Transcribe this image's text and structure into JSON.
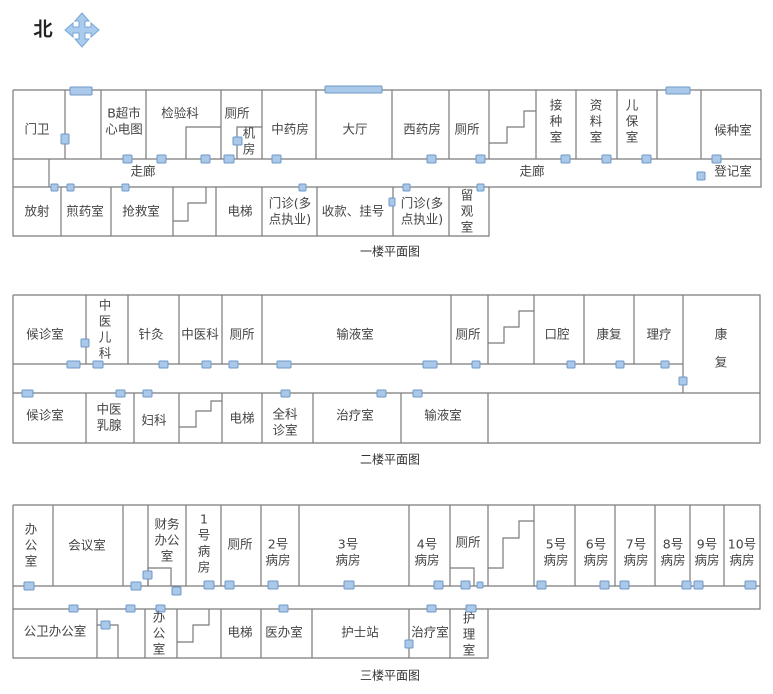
{
  "compass": {
    "label": "北",
    "icon": "four-way-arrow-icon",
    "icon_color": "#8fb8e0"
  },
  "colors": {
    "wall": "#7a7a7a",
    "door": "#a9c8ea",
    "text": "#444444"
  },
  "floors": [
    {
      "title": "一楼平面图",
      "rooms": [
        {
          "lines": [
            "门卫"
          ]
        },
        {
          "lines": [
            "B超市",
            "心电图"
          ]
        },
        {
          "lines": [
            "检验科"
          ]
        },
        {
          "lines": [
            "厕所"
          ]
        },
        {
          "lines": [
            "机",
            "房"
          ]
        },
        {
          "lines": [
            "中药房"
          ]
        },
        {
          "lines": [
            "大厅"
          ]
        },
        {
          "lines": [
            "西药房"
          ]
        },
        {
          "lines": [
            "厕所"
          ]
        },
        {
          "lines": [
            "接",
            "种",
            "室"
          ]
        },
        {
          "lines": [
            "资",
            "料",
            "室"
          ]
        },
        {
          "lines": [
            "儿",
            "保",
            "室"
          ]
        },
        {
          "lines": [
            "候种室"
          ]
        },
        {
          "lines": [
            "走廊"
          ]
        },
        {
          "lines": [
            "走廊"
          ]
        },
        {
          "lines": [
            "登记室"
          ]
        },
        {
          "lines": [
            "放射"
          ]
        },
        {
          "lines": [
            "煎药室"
          ]
        },
        {
          "lines": [
            "抢救室"
          ]
        },
        {
          "lines": [
            "电梯"
          ]
        },
        {
          "lines": [
            "门诊(多",
            "点执业)"
          ]
        },
        {
          "lines": [
            "收款、挂号"
          ]
        },
        {
          "lines": [
            "门诊(多",
            "点执业)"
          ]
        },
        {
          "lines": [
            "留",
            "观",
            "室"
          ]
        }
      ]
    },
    {
      "title": "二楼平面图",
      "rooms": [
        {
          "lines": [
            "候诊室"
          ]
        },
        {
          "lines": [
            "中",
            "医",
            "儿",
            "科"
          ]
        },
        {
          "lines": [
            "针灸"
          ]
        },
        {
          "lines": [
            "中医科"
          ]
        },
        {
          "lines": [
            "厕所"
          ]
        },
        {
          "lines": [
            "输液室"
          ]
        },
        {
          "lines": [
            "厕所"
          ]
        },
        {
          "lines": [
            "口腔"
          ]
        },
        {
          "lines": [
            "康复"
          ]
        },
        {
          "lines": [
            "理疗"
          ]
        },
        {
          "lines": [
            "康",
            "复"
          ]
        },
        {
          "lines": [
            "候诊室"
          ]
        },
        {
          "lines": [
            "中医",
            "乳腺"
          ]
        },
        {
          "lines": [
            "妇科"
          ]
        },
        {
          "lines": [
            "电梯"
          ]
        },
        {
          "lines": [
            "全科",
            "诊室"
          ]
        },
        {
          "lines": [
            "治疗室"
          ]
        },
        {
          "lines": [
            "输液室"
          ]
        }
      ]
    },
    {
      "title": "三楼平面图",
      "rooms": [
        {
          "lines": [
            "办",
            "公",
            "室"
          ]
        },
        {
          "lines": [
            "会议室"
          ]
        },
        {
          "lines": [
            "财务",
            "办公",
            "室"
          ]
        },
        {
          "lines": [
            "1",
            "号",
            "病",
            "房"
          ]
        },
        {
          "lines": [
            "厕所"
          ]
        },
        {
          "lines": [
            "2号",
            "病房"
          ]
        },
        {
          "lines": [
            "3号",
            "病房"
          ]
        },
        {
          "lines": [
            "4号",
            "病房"
          ]
        },
        {
          "lines": [
            "厕所"
          ]
        },
        {
          "lines": [
            "5号",
            "病房"
          ]
        },
        {
          "lines": [
            "6号",
            "病房"
          ]
        },
        {
          "lines": [
            "7号",
            "病房"
          ]
        },
        {
          "lines": [
            "8号",
            "病房"
          ]
        },
        {
          "lines": [
            "9号",
            "病房"
          ]
        },
        {
          "lines": [
            "10号",
            "病房"
          ]
        },
        {
          "lines": [
            "公卫办公室"
          ]
        },
        {
          "lines": [
            "办",
            "公",
            "室"
          ]
        },
        {
          "lines": [
            "电梯"
          ]
        },
        {
          "lines": [
            "医办室"
          ]
        },
        {
          "lines": [
            "护士站"
          ]
        },
        {
          "lines": [
            "治疗室"
          ]
        },
        {
          "lines": [
            "护",
            "理",
            "室"
          ]
        }
      ]
    }
  ]
}
